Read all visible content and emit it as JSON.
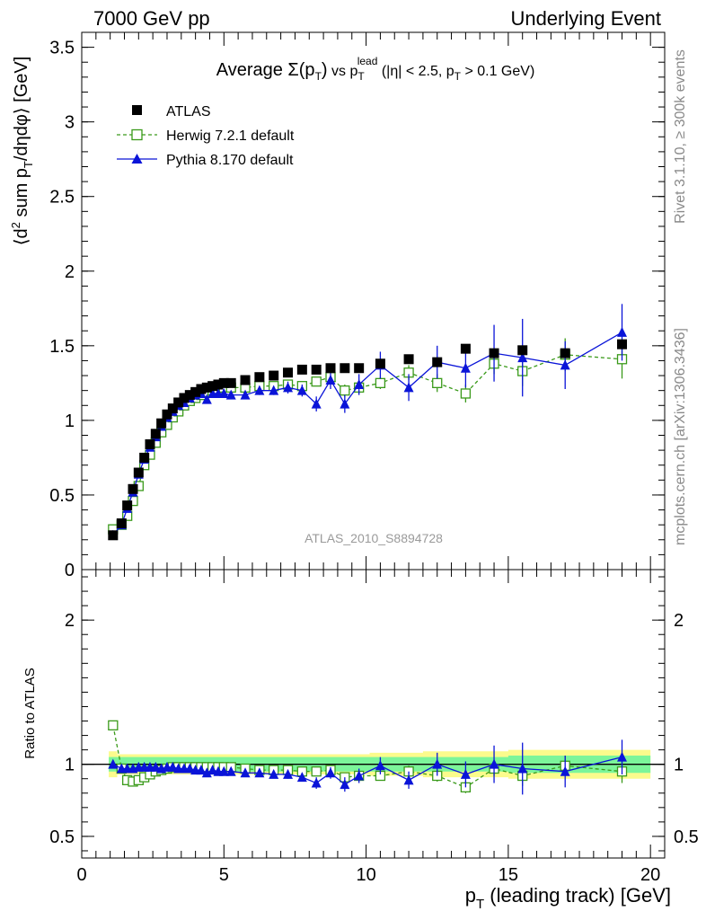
{
  "header": {
    "left": "7000 GeV pp",
    "right": "Underlying Event"
  },
  "side_labels": {
    "rivet": "Rivet 3.1.10, ≥ 300k events",
    "mcplots": "mcplots.cern.ch [arXiv:1306.3436]"
  },
  "watermark": "ATLAS_2010_S8894728",
  "colors": {
    "atlas": "#000000",
    "herwig": "#3a9a1a",
    "pythia": "#0a14d8",
    "band_inner": "#7cf59a",
    "band_outer": "#fbfb8c"
  },
  "chart_data": [
    {
      "type": "scatter",
      "title": "Average Σ(pT) vs pT^lead (|η| < 2.5, pT > 0.1 GeV)",
      "title_parts": {
        "lead": "Average ",
        "sigma": "Σ(p",
        "sub_t": "T",
        "close": ")",
        "vs": " vs p",
        "sup_lead": "lead",
        "cuts_a": " (|η| < 2.5, p",
        "cuts_b": " > 0.1 GeV)"
      },
      "ylabel": "⟨d² sum pT/dηdφ⟩ [GeV]",
      "ylabel_parts": {
        "a": "⟨d",
        "sup2": "2",
        "b": " sum p",
        "sub": "T",
        "c": "/dηdφ⟩ [GeV]"
      },
      "xlim": [
        0,
        20.5
      ],
      "ylim": [
        0,
        3.6
      ],
      "yticks": [
        "0",
        "0.5",
        "1",
        "1.5",
        "2",
        "2.5",
        "3",
        "3.5"
      ],
      "x": [
        1.1,
        1.4,
        1.6,
        1.8,
        2.0,
        2.2,
        2.4,
        2.6,
        2.8,
        3.0,
        3.2,
        3.4,
        3.6,
        3.8,
        4.0,
        4.2,
        4.4,
        4.6,
        4.8,
        5.0,
        5.25,
        5.75,
        6.25,
        6.75,
        7.25,
        7.75,
        8.25,
        8.75,
        9.25,
        9.75,
        10.5,
        11.5,
        12.5,
        13.5,
        14.5,
        15.5,
        17.0,
        19.0
      ],
      "series": [
        {
          "name": "ATLAS",
          "marker": "filled-square",
          "values": [
            0.23,
            0.31,
            0.43,
            0.54,
            0.65,
            0.75,
            0.84,
            0.91,
            0.98,
            1.04,
            1.08,
            1.12,
            1.15,
            1.17,
            1.19,
            1.21,
            1.22,
            1.23,
            1.24,
            1.25,
            1.25,
            1.27,
            1.29,
            1.3,
            1.32,
            1.34,
            1.34,
            1.35,
            1.35,
            1.35,
            1.38,
            1.41,
            1.39,
            1.48,
            1.45,
            1.47,
            1.45,
            1.51
          ],
          "err": [
            0.01,
            0.01,
            0.01,
            0.01,
            0.01,
            0.01,
            0.01,
            0.01,
            0.01,
            0.01,
            0.01,
            0.01,
            0.01,
            0.01,
            0.01,
            0.01,
            0.01,
            0.01,
            0.01,
            0.01,
            0.01,
            0.01,
            0.01,
            0.01,
            0.01,
            0.01,
            0.01,
            0.01,
            0.01,
            0.01,
            0.01,
            0.01,
            0.01,
            0.01,
            0.01,
            0.01,
            0.01,
            0.01
          ]
        },
        {
          "name": "Herwig 7.2.1 default",
          "marker": "open-square",
          "values": [
            0.27,
            0.3,
            0.36,
            0.46,
            0.56,
            0.7,
            0.77,
            0.85,
            0.92,
            0.97,
            1.02,
            1.06,
            1.1,
            1.13,
            1.15,
            1.17,
            1.19,
            1.2,
            1.21,
            1.22,
            1.22,
            1.22,
            1.23,
            1.23,
            1.24,
            1.23,
            1.26,
            1.29,
            1.2,
            1.22,
            1.25,
            1.32,
            1.25,
            1.18,
            1.38,
            1.33,
            1.44,
            1.41
          ],
          "err": [
            0.01,
            0.01,
            0.01,
            0.01,
            0.01,
            0.01,
            0.01,
            0.01,
            0.01,
            0.01,
            0.01,
            0.01,
            0.01,
            0.01,
            0.01,
            0.01,
            0.01,
            0.01,
            0.01,
            0.01,
            0.01,
            0.02,
            0.02,
            0.02,
            0.02,
            0.03,
            0.03,
            0.03,
            0.04,
            0.04,
            0.04,
            0.05,
            0.06,
            0.06,
            0.07,
            0.1,
            0.11,
            0.13
          ]
        },
        {
          "name": "Pythia 8.170 default",
          "marker": "filled-triangle",
          "values": [
            0.23,
            0.3,
            0.41,
            0.52,
            0.64,
            0.74,
            0.82,
            0.89,
            0.96,
            1.02,
            1.06,
            1.1,
            1.12,
            1.15,
            1.17,
            1.18,
            1.14,
            1.18,
            1.18,
            1.18,
            1.17,
            1.17,
            1.2,
            1.2,
            1.22,
            1.2,
            1.11,
            1.27,
            1.11,
            1.24,
            1.37,
            1.22,
            1.39,
            1.35,
            1.45,
            1.42,
            1.37,
            1.59
          ],
          "err": [
            0.01,
            0.01,
            0.01,
            0.01,
            0.01,
            0.01,
            0.01,
            0.01,
            0.01,
            0.01,
            0.01,
            0.01,
            0.01,
            0.01,
            0.01,
            0.01,
            0.01,
            0.01,
            0.01,
            0.01,
            0.01,
            0.02,
            0.03,
            0.03,
            0.04,
            0.04,
            0.05,
            0.06,
            0.06,
            0.07,
            0.09,
            0.09,
            0.11,
            0.13,
            0.19,
            0.26,
            0.16,
            0.19
          ]
        }
      ],
      "legend": "top-left"
    },
    {
      "type": "scatter",
      "ylabel": "Ratio to ATLAS",
      "xlabel": "pT (leading track) [GeV]",
      "xlabel_parts": {
        "a": "p",
        "sub": "T",
        "b": " (leading track) [GeV]"
      },
      "xlim": [
        0,
        20.5
      ],
      "ylim": [
        0.35,
        2.35
      ],
      "xticks": [
        "0",
        "5",
        "10",
        "15",
        "20"
      ],
      "yticks": [
        "0.5",
        "1",
        "2"
      ],
      "x": [
        1.1,
        1.4,
        1.6,
        1.8,
        2.0,
        2.2,
        2.4,
        2.6,
        2.8,
        3.0,
        3.2,
        3.4,
        3.6,
        3.8,
        4.0,
        4.2,
        4.4,
        4.6,
        4.8,
        5.0,
        5.25,
        5.75,
        6.25,
        6.75,
        7.25,
        7.75,
        8.25,
        8.75,
        9.25,
        9.75,
        10.5,
        11.5,
        12.5,
        13.5,
        14.5,
        15.5,
        17.0,
        19.0
      ],
      "band_inner": [
        0.05,
        0.05,
        0.05,
        0.05,
        0.05,
        0.05,
        0.05,
        0.05,
        0.05,
        0.05,
        0.05,
        0.05,
        0.05,
        0.05,
        0.05,
        0.05,
        0.05,
        0.05,
        0.05,
        0.05,
        0.05,
        0.05,
        0.05,
        0.05,
        0.05,
        0.05,
        0.05,
        0.05,
        0.05,
        0.05,
        0.05,
        0.05,
        0.05,
        0.05,
        0.05,
        0.06,
        0.06,
        0.06
      ],
      "band_outer": [
        0.09,
        0.07,
        0.07,
        0.07,
        0.07,
        0.07,
        0.07,
        0.07,
        0.07,
        0.07,
        0.07,
        0.07,
        0.07,
        0.07,
        0.07,
        0.07,
        0.07,
        0.07,
        0.07,
        0.07,
        0.07,
        0.07,
        0.07,
        0.07,
        0.07,
        0.07,
        0.07,
        0.07,
        0.07,
        0.07,
        0.08,
        0.08,
        0.09,
        0.09,
        0.09,
        0.1,
        0.1,
        0.1
      ],
      "series": [
        {
          "name": "Herwig 7.2.1 default",
          "values": [
            1.27,
            0.97,
            0.89,
            0.88,
            0.89,
            0.91,
            0.93,
            0.95,
            0.96,
            0.97,
            0.98,
            0.98,
            0.98,
            0.98,
            0.98,
            0.98,
            0.98,
            0.98,
            0.98,
            0.98,
            0.98,
            0.97,
            0.96,
            0.96,
            0.96,
            0.95,
            0.95,
            0.96,
            0.91,
            0.92,
            0.92,
            0.95,
            0.92,
            0.84,
            0.97,
            0.92,
            0.99,
            0.95
          ],
          "err": [
            0.01,
            0.01,
            0.01,
            0.01,
            0.01,
            0.01,
            0.01,
            0.01,
            0.01,
            0.01,
            0.01,
            0.01,
            0.01,
            0.01,
            0.01,
            0.01,
            0.01,
            0.01,
            0.01,
            0.01,
            0.01,
            0.01,
            0.01,
            0.01,
            0.01,
            0.02,
            0.02,
            0.02,
            0.03,
            0.03,
            0.03,
            0.04,
            0.04,
            0.04,
            0.05,
            0.07,
            0.07,
            0.08
          ]
        },
        {
          "name": "Pythia 8.170 default",
          "values": [
            1.0,
            0.97,
            0.97,
            0.97,
            0.98,
            0.98,
            0.98,
            0.98,
            0.97,
            0.98,
            0.98,
            0.97,
            0.97,
            0.97,
            0.96,
            0.96,
            0.94,
            0.96,
            0.95,
            0.95,
            0.95,
            0.94,
            0.94,
            0.93,
            0.93,
            0.91,
            0.87,
            0.94,
            0.86,
            0.92,
            0.99,
            0.89,
            1.0,
            0.93,
            1.0,
            0.97,
            0.95,
            1.05
          ],
          "err": [
            0.01,
            0.01,
            0.01,
            0.01,
            0.01,
            0.01,
            0.01,
            0.01,
            0.01,
            0.01,
            0.01,
            0.01,
            0.01,
            0.01,
            0.01,
            0.01,
            0.01,
            0.01,
            0.01,
            0.01,
            0.01,
            0.02,
            0.02,
            0.02,
            0.03,
            0.03,
            0.04,
            0.04,
            0.05,
            0.05,
            0.06,
            0.06,
            0.08,
            0.09,
            0.13,
            0.18,
            0.11,
            0.12
          ]
        }
      ]
    }
  ]
}
